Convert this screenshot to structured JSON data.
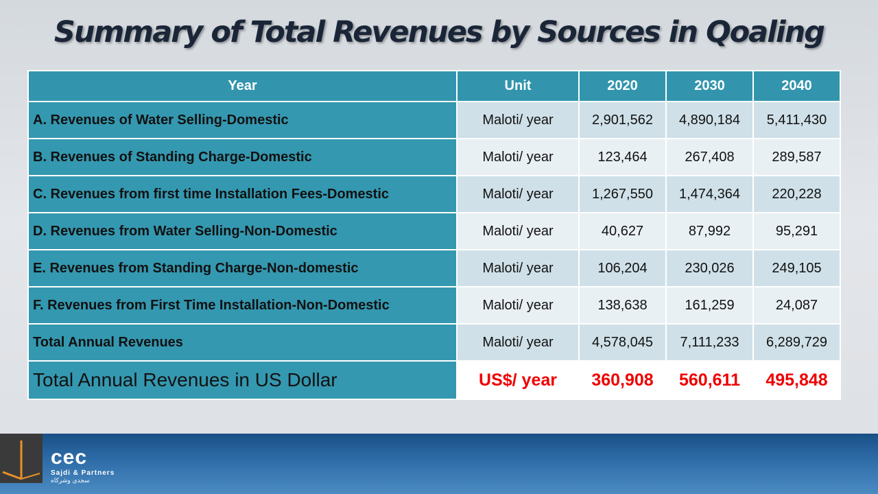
{
  "title": "Summary of Total Revenues by Sources in Qoaling",
  "table": {
    "headers": [
      "Year",
      "Unit",
      "2020",
      "2030",
      "2040"
    ],
    "rows": [
      {
        "label": "A. Revenues of Water Selling-Domestic",
        "unit": "Maloti/ year",
        "v2020": "2,901,562",
        "v2030": "4,890,184",
        "v2040": "5,411,430"
      },
      {
        "label": "B. Revenues of Standing Charge-Domestic",
        "unit": "Maloti/ year",
        "v2020": "123,464",
        "v2030": "267,408",
        "v2040": "289,587"
      },
      {
        "label": "C. Revenues from first time Installation Fees-Domestic",
        "unit": "Maloti/ year",
        "v2020": "1,267,550",
        "v2030": "1,474,364",
        "v2040": "220,228"
      },
      {
        "label": "D. Revenues from Water Selling-Non-Domestic",
        "unit": "Maloti/ year",
        "v2020": "40,627",
        "v2030": "87,992",
        "v2040": "95,291"
      },
      {
        "label": "E. Revenues from Standing Charge-Non-domestic",
        "unit": "Maloti/ year",
        "v2020": "106,204",
        "v2030": "230,026",
        "v2040": "249,105"
      },
      {
        "label": "F. Revenues from First Time Installation-Non-Domestic",
        "unit": "Maloti/ year",
        "v2020": "138,638",
        "v2030": "161,259",
        "v2040": "24,087"
      },
      {
        "label": "Total Annual Revenues",
        "unit": "Maloti/ year",
        "v2020": "4,578,045",
        "v2030": "7,111,233",
        "v2040": "6,289,729"
      },
      {
        "label": "Total Annual Revenues  in US Dollar",
        "unit": "US$/ year",
        "v2020": "360,908",
        "v2030": "560,611",
        "v2040": "495,848"
      }
    ]
  },
  "footer": {
    "logo_main": "cec",
    "logo_sub": "Sajdi & Partners",
    "logo_arabic": "سجدي وشركاه"
  },
  "colors": {
    "header_bg": "#3295ad",
    "highlight_red": "#ee0000"
  }
}
